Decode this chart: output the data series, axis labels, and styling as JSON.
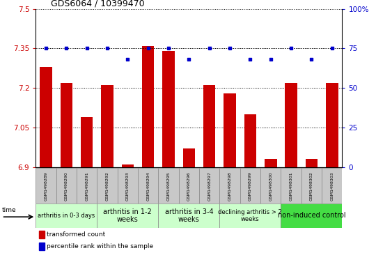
{
  "title": "GDS6064 / 10399470",
  "samples": [
    "GSM1498289",
    "GSM1498290",
    "GSM1498291",
    "GSM1498292",
    "GSM1498293",
    "GSM1498294",
    "GSM1498295",
    "GSM1498296",
    "GSM1498297",
    "GSM1498298",
    "GSM1498299",
    "GSM1498300",
    "GSM1498301",
    "GSM1498302",
    "GSM1498303"
  ],
  "bar_values": [
    7.28,
    7.22,
    7.09,
    7.21,
    6.91,
    7.36,
    7.34,
    6.97,
    7.21,
    7.18,
    7.1,
    6.93,
    7.22,
    6.93,
    7.22
  ],
  "dot_values": [
    75,
    75,
    75,
    75,
    68,
    75,
    75,
    68,
    75,
    75,
    68,
    68,
    75,
    68,
    75
  ],
  "ylim_left": [
    6.9,
    7.5
  ],
  "ylim_right": [
    0,
    100
  ],
  "yticks_left": [
    6.9,
    7.05,
    7.2,
    7.35,
    7.5
  ],
  "yticks_right": [
    0,
    25,
    50,
    75,
    100
  ],
  "bar_color": "#cc0000",
  "dot_color": "#0000cc",
  "bar_bottom": 6.9,
  "groups": [
    {
      "label": "arthritis in 0-3 days",
      "start": 0,
      "end": 3,
      "color": "#ccffcc",
      "fontsize": 6.0
    },
    {
      "label": "arthritis in 1-2\nweeks",
      "start": 3,
      "end": 6,
      "color": "#ccffcc",
      "fontsize": 7.0
    },
    {
      "label": "arthritis in 3-4\nweeks",
      "start": 6,
      "end": 9,
      "color": "#ccffcc",
      "fontsize": 7.0
    },
    {
      "label": "declining arthritis > 2\nweeks",
      "start": 9,
      "end": 12,
      "color": "#ccffcc",
      "fontsize": 6.0
    },
    {
      "label": "non-induced control",
      "start": 12,
      "end": 15,
      "color": "#44dd44",
      "fontsize": 7.0
    }
  ],
  "sample_cell_color": "#c8c8c8",
  "sample_cell_edge": "#888888",
  "legend_red": "#cc0000",
  "legend_blue": "#0000cc",
  "legend_text1": "transformed count",
  "legend_text2": "percentile rank within the sample",
  "time_label": "time"
}
